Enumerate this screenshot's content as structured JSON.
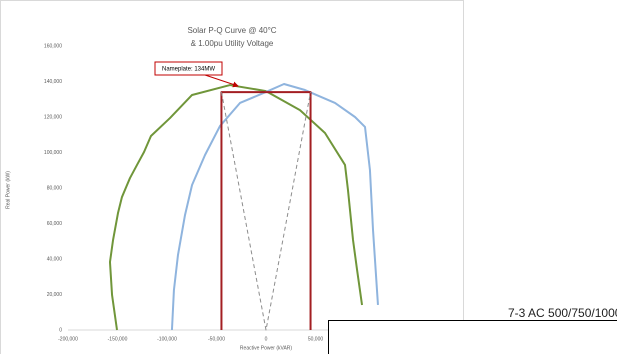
{
  "chart_data": {
    "type": "line",
    "title": [
      "Solar P-Q Curve @ 40°C",
      "& 1.00pu Utility Voltage"
    ],
    "x_label": "Reactive Power (kVAR)",
    "y_label": "Real Power (kW)",
    "xlim": [
      -200000,
      200000
    ],
    "ylim": [
      0,
      160000
    ],
    "xticks": [
      {
        "value": -200000,
        "label": "-200,000"
      },
      {
        "value": -150000,
        "label": "-150,000"
      },
      {
        "value": -100000,
        "label": "-100,000"
      },
      {
        "value": -50000,
        "label": "-50,000"
      },
      0,
      {
        "value": 50000,
        "label": "50,000"
      }
    ],
    "yticks": [
      0,
      {
        "value": 20000,
        "label": "20,000"
      },
      {
        "value": 40000,
        "label": "40,000"
      },
      {
        "value": 60000,
        "label": "60,000"
      },
      {
        "value": 80000,
        "label": "80,000"
      },
      {
        "value": 100000,
        "label": "100,000"
      },
      {
        "value": 120000,
        "label": "120,000"
      },
      {
        "value": 140000,
        "label": "140,000"
      },
      {
        "value": 160000,
        "label": "160,000"
      }
    ],
    "grid": false,
    "series": [
      {
        "color": "#70963a",
        "dashed": false,
        "width": 2,
        "x": [
          -150500,
          -155500,
          -157600,
          -154500,
          -149500,
          -145500,
          -137400,
          -130300,
          -123200,
          -116200,
          -97000,
          -74700,
          -36400,
          0,
          34300,
          59600,
          79800,
          82800,
          87900,
          92000,
          97000
        ],
        "values": [
          0,
          19700,
          38300,
          50700,
          65900,
          74900,
          85600,
          93000,
          100300,
          109300,
          119400,
          132400,
          138000,
          134600,
          123900,
          111000,
          93000,
          78900,
          50700,
          33800,
          14100
        ]
      },
      {
        "color": "#8fb4de",
        "dashed": false,
        "width": 2,
        "x": [
          -95000,
          -93000,
          -88900,
          -81800,
          -74700,
          -61600,
          -46500,
          -26300,
          0,
          18200,
          39400,
          69700,
          89900,
          100000,
          105000,
          108100,
          113100
        ],
        "values": [
          0,
          22500,
          42300,
          64800,
          81700,
          98600,
          114900,
          127900,
          134100,
          138600,
          135200,
          127900,
          120000,
          114400,
          90100,
          56300,
          14100
        ]
      },
      {
        "color": "#a31e22",
        "dashed": false,
        "width": 2,
        "x": [
          -45000,
          -45000,
          45000,
          45000
        ],
        "values": [
          0,
          134000,
          134000,
          0
        ]
      },
      {
        "color": "#8c8c8c",
        "dashed": true,
        "width": 1,
        "x": [
          -45000,
          0,
          45000
        ],
        "values": [
          134000,
          0,
          134000
        ]
      }
    ],
    "annotation": "Nameplate: 134MW"
  },
  "side_text": "7-3 AC 500/750/1000"
}
